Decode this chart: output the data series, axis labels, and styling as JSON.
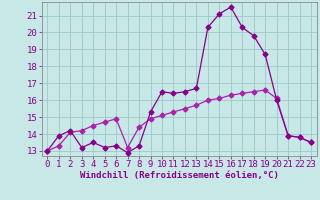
{
  "background_color": "#c8e8e8",
  "grid_color": "#a0c8c8",
  "line1_color": "#880088",
  "line2_color": "#aa22aa",
  "xlabel": "Windchill (Refroidissement éolien,°C)",
  "xlim_min": -0.5,
  "xlim_max": 23.5,
  "ylim_min": 12.7,
  "ylim_max": 21.8,
  "yticks": [
    13,
    14,
    15,
    16,
    17,
    18,
    19,
    20,
    21
  ],
  "xticks": [
    0,
    1,
    2,
    3,
    4,
    5,
    6,
    7,
    8,
    9,
    10,
    11,
    12,
    13,
    14,
    15,
    16,
    17,
    18,
    19,
    20,
    21,
    22,
    23
  ],
  "series1_x": [
    0,
    1,
    2,
    3,
    4,
    5,
    6,
    7,
    8,
    9,
    10,
    11,
    12,
    13,
    14,
    15,
    16,
    17,
    18,
    19,
    20,
    21,
    22,
    23
  ],
  "series1_y": [
    13.0,
    13.9,
    14.2,
    13.2,
    13.5,
    13.2,
    13.3,
    12.9,
    13.3,
    15.3,
    16.5,
    16.4,
    16.5,
    16.7,
    20.3,
    21.1,
    21.5,
    20.3,
    19.8,
    18.7,
    16.0,
    13.9,
    13.8,
    13.5
  ],
  "series2_x": [
    0,
    1,
    2,
    3,
    4,
    5,
    6,
    7,
    8,
    9,
    10,
    11,
    12,
    13,
    14,
    15,
    16,
    17,
    18,
    19,
    20,
    21,
    22,
    23
  ],
  "series2_y": [
    13.0,
    13.3,
    14.1,
    14.2,
    14.5,
    14.7,
    14.9,
    13.2,
    14.4,
    14.9,
    15.1,
    15.3,
    15.5,
    15.7,
    16.0,
    16.1,
    16.3,
    16.4,
    16.5,
    16.6,
    16.1,
    13.9,
    13.8,
    13.5
  ],
  "markersize": 2.5,
  "linewidth": 0.9,
  "xlabel_fontsize": 6.5,
  "tick_fontsize": 6.5,
  "label_color": "#880088",
  "spine_color": "#888888"
}
